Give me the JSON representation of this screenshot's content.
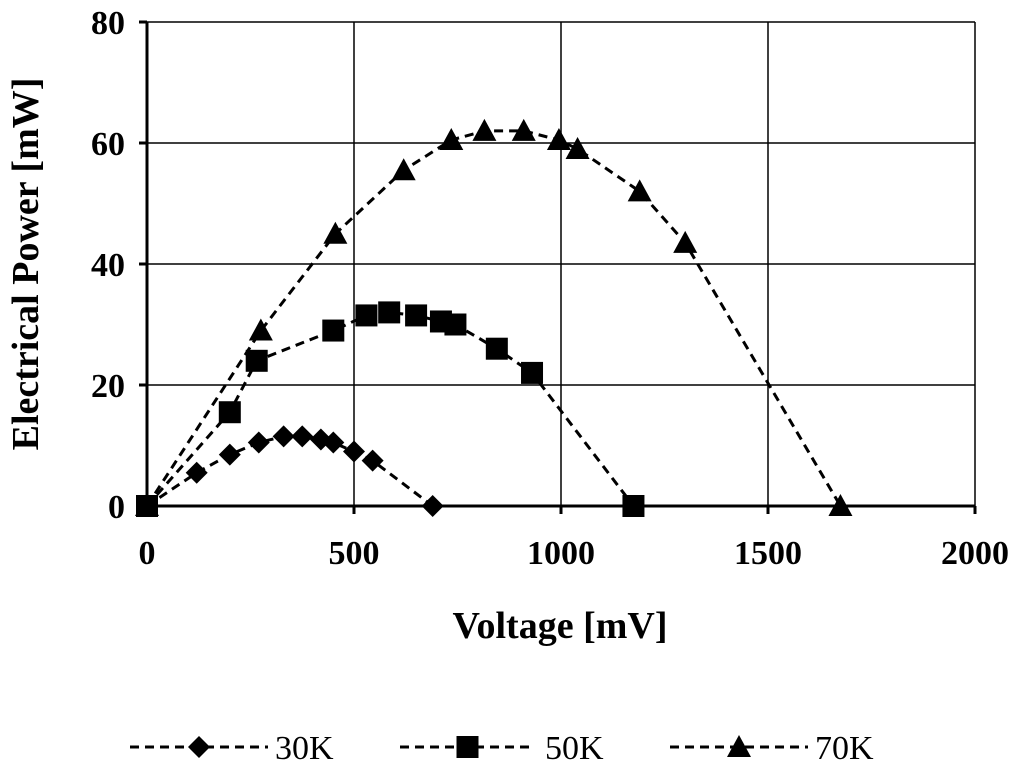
{
  "chart_data": {
    "type": "scatter",
    "title": "",
    "xlabel": "Voltage [mV]",
    "ylabel": "Electrical Power [mW]",
    "xlim": [
      0,
      2000
    ],
    "ylim": [
      0,
      80
    ],
    "xticks": [
      0,
      500,
      1000,
      1500,
      2000
    ],
    "yticks": [
      0,
      20,
      40,
      60,
      80
    ],
    "grid": true,
    "legend_position": "bottom",
    "line_style": "dashed",
    "series": [
      {
        "name": "30K",
        "marker": "diamond",
        "points": [
          [
            0,
            0
          ],
          [
            120,
            5.5
          ],
          [
            200,
            8.5
          ],
          [
            270,
            10.5
          ],
          [
            330,
            11.5
          ],
          [
            375,
            11.5
          ],
          [
            420,
            11
          ],
          [
            450,
            10.5
          ],
          [
            500,
            9
          ],
          [
            545,
            7.5
          ],
          [
            690,
            0
          ]
        ]
      },
      {
        "name": "50K",
        "marker": "square",
        "points": [
          [
            0,
            0
          ],
          [
            200,
            15.5
          ],
          [
            265,
            24
          ],
          [
            450,
            29
          ],
          [
            530,
            31.5
          ],
          [
            585,
            32
          ],
          [
            650,
            31.5
          ],
          [
            710,
            30.5
          ],
          [
            745,
            30
          ],
          [
            845,
            26
          ],
          [
            930,
            22
          ],
          [
            1175,
            0
          ]
        ]
      },
      {
        "name": "70K",
        "marker": "triangle",
        "points": [
          [
            0,
            0
          ],
          [
            275,
            29
          ],
          [
            455,
            45
          ],
          [
            620,
            55.5
          ],
          [
            735,
            60.5
          ],
          [
            815,
            62
          ],
          [
            910,
            62
          ],
          [
            995,
            60.5
          ],
          [
            1040,
            59
          ],
          [
            1190,
            52
          ],
          [
            1300,
            43.5
          ],
          [
            1675,
            0
          ]
        ]
      }
    ]
  }
}
